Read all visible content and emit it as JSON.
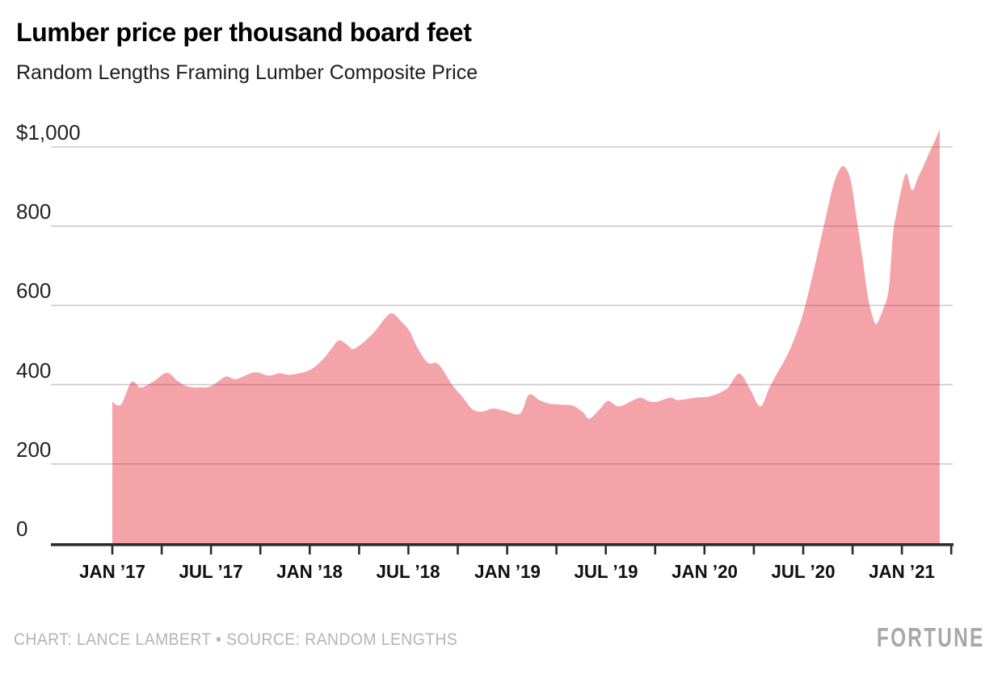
{
  "header": {
    "title": "Lumber price per thousand board feet",
    "subtitle": "Random Lengths Framing Lumber Composite Price"
  },
  "footer": {
    "credit": "CHART: LANCE LAMBERT • SOURCE: RANDOM LENGTHS",
    "brand": "FORTUNE"
  },
  "colors": {
    "background": "#ffffff",
    "area_fill": "rgba(226,16,27,0.38)",
    "area_flat_hex": "#f5a4a8",
    "gridline": "#cbcbcb",
    "axis_line": "#2a2a2a",
    "tick": "#2a2a2a",
    "y_label_text": "#222222",
    "x_label_text": "#101010",
    "title_text": "#000000",
    "credit_text": "#b4b4b4",
    "brand_text": "#a8a8a8"
  },
  "chart_data": {
    "type": "area",
    "title": "Lumber price per thousand board feet",
    "subtitle": "Random Lengths Framing Lumber Composite Price",
    "unit": "USD per thousand board feet",
    "legend": "none",
    "grid": true,
    "x_axis": {
      "range": [
        "2017-01",
        "2021-04"
      ],
      "major_label_interval_months": 6,
      "minor_tick_interval_months": 3,
      "tick_labels": [
        "JAN ’17",
        "JUL ’17",
        "JAN ’18",
        "JUL ’18",
        "JAN ’19",
        "JUL ’19",
        "JAN ’20",
        "JUL ’20",
        "JAN ’21"
      ]
    },
    "y_axis": {
      "range": [
        0,
        1000
      ],
      "tick_values": [
        1000,
        800,
        600,
        400,
        200,
        0
      ],
      "tick_labels": [
        "$1,000",
        "800",
        "600",
        "400",
        "200",
        "0"
      ]
    },
    "series": [
      {
        "name": "Random Lengths Framing Lumber Composite Price",
        "points": [
          [
            "2017-01-01",
            357
          ],
          [
            "2017-01-17",
            350
          ],
          [
            "2017-02-06",
            407
          ],
          [
            "2017-02-23",
            393
          ],
          [
            "2017-03-16",
            408
          ],
          [
            "2017-04-11",
            430
          ],
          [
            "2017-04-30",
            410
          ],
          [
            "2017-05-18",
            396
          ],
          [
            "2017-06-11",
            393
          ],
          [
            "2017-07-02",
            397
          ],
          [
            "2017-07-28",
            420
          ],
          [
            "2017-08-17",
            414
          ],
          [
            "2017-09-20",
            431
          ],
          [
            "2017-10-16",
            423
          ],
          [
            "2017-11-07",
            429
          ],
          [
            "2017-11-26",
            425
          ],
          [
            "2018-01-01",
            437
          ],
          [
            "2018-01-26",
            465
          ],
          [
            "2018-02-13",
            495
          ],
          [
            "2018-02-25",
            512
          ],
          [
            "2018-03-10",
            500
          ],
          [
            "2018-03-21",
            490
          ],
          [
            "2018-04-12",
            510
          ],
          [
            "2018-05-03",
            540
          ],
          [
            "2018-05-20",
            570
          ],
          [
            "2018-06-02",
            580
          ],
          [
            "2018-06-18",
            560
          ],
          [
            "2018-07-03",
            535
          ],
          [
            "2018-07-19",
            490
          ],
          [
            "2018-08-07",
            455
          ],
          [
            "2018-08-26",
            452
          ],
          [
            "2018-09-21",
            400
          ],
          [
            "2018-10-09",
            370
          ],
          [
            "2018-10-28",
            338
          ],
          [
            "2018-11-16",
            332
          ],
          [
            "2018-12-05",
            340
          ],
          [
            "2018-12-27",
            334
          ],
          [
            "2019-01-25",
            327
          ],
          [
            "2019-02-11",
            375
          ],
          [
            "2019-03-01",
            360
          ],
          [
            "2019-03-20",
            352
          ],
          [
            "2019-04-10",
            350
          ],
          [
            "2019-05-01",
            347
          ],
          [
            "2019-05-20",
            330
          ],
          [
            "2019-06-01",
            314
          ],
          [
            "2019-06-20",
            338
          ],
          [
            "2019-07-05",
            359
          ],
          [
            "2019-07-25",
            345
          ],
          [
            "2019-08-20",
            360
          ],
          [
            "2019-09-05",
            367
          ],
          [
            "2019-09-20",
            358
          ],
          [
            "2019-10-04",
            357
          ],
          [
            "2019-10-29",
            367
          ],
          [
            "2019-11-13",
            361
          ],
          [
            "2019-12-13",
            367
          ],
          [
            "2020-01-12",
            371
          ],
          [
            "2020-02-12",
            390
          ],
          [
            "2020-03-04",
            428
          ],
          [
            "2020-03-24",
            390
          ],
          [
            "2020-04-13",
            345
          ],
          [
            "2020-04-29",
            390
          ],
          [
            "2020-05-14",
            430
          ],
          [
            "2020-05-26",
            458
          ],
          [
            "2020-06-10",
            499
          ],
          [
            "2020-06-29",
            570
          ],
          [
            "2020-07-14",
            651
          ],
          [
            "2020-07-29",
            739
          ],
          [
            "2020-08-12",
            820
          ],
          [
            "2020-08-24",
            892
          ],
          [
            "2020-09-05",
            937
          ],
          [
            "2020-09-16",
            951
          ],
          [
            "2020-09-28",
            916
          ],
          [
            "2020-10-08",
            825
          ],
          [
            "2020-10-20",
            713
          ],
          [
            "2020-10-30",
            617
          ],
          [
            "2020-11-10",
            562
          ],
          [
            "2020-11-16",
            555
          ],
          [
            "2020-11-27",
            590
          ],
          [
            "2020-12-07",
            640
          ],
          [
            "2020-12-15",
            780
          ],
          [
            "2020-12-22",
            837
          ],
          [
            "2020-12-29",
            884
          ],
          [
            "2021-01-09",
            933
          ],
          [
            "2021-01-20",
            890
          ],
          [
            "2021-02-01",
            925
          ],
          [
            "2021-02-10",
            950
          ],
          [
            "2021-02-21",
            985
          ],
          [
            "2021-03-01",
            1015
          ],
          [
            "2021-03-10",
            1044
          ]
        ]
      }
    ]
  }
}
